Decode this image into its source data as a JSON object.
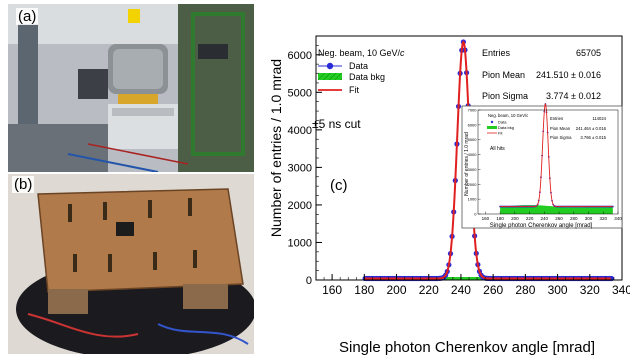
{
  "figure": {
    "panel_a_label": "(a)",
    "panel_b_label": "(b)",
    "panel_c_label": "(c)"
  },
  "stats": {
    "entries_label": "Entries",
    "entries_value": "65705",
    "mean_label": "Pion Mean",
    "mean_value": "241.510 ± 0.016",
    "sigma_label": "Pion Sigma",
    "sigma_value": "3.774 ± 0.012"
  },
  "inset_stats": {
    "title": "Neg. beam, 10 GeV/c",
    "entries_label": "Entries",
    "entries_value": "114024",
    "mean_label": "Pion Mean",
    "mean_value": "241.464 ± 0.016",
    "sigma_label": "Pion Sigma",
    "sigma_value": "3.766 ± 0.015",
    "cut_text": "All hits",
    "xlabel": "Single photon Cherenkov angle [mrad]",
    "ylabel": "Number of entries / 1.0 mrad",
    "legend": [
      "Data",
      "Data bkg",
      "Fit"
    ]
  },
  "colors": {
    "data": "#2b2bd6",
    "fit": "#e02020",
    "bkg": "#22cc22"
  },
  "chart_data": {
    "type": "scatter",
    "title": "",
    "beam_text": "Neg. beam, 10 GeV/",
    "beam_text_italic": "c",
    "cut_text": "±5 ns cut",
    "xlabel": "Single photon Cherenkov angle [mrad]",
    "ylabel": "Number of entries / 1.0 mrad",
    "xlim": [
      150,
      340
    ],
    "ylim": [
      0,
      6500
    ],
    "xticks": [
      160,
      180,
      200,
      220,
      240,
      260,
      280,
      300,
      320,
      340
    ],
    "yticks": [
      0,
      1000,
      2000,
      3000,
      4000,
      5000,
      6000
    ],
    "legend": [
      {
        "name": "Data",
        "kind": "marker"
      },
      {
        "name": "Data bkg",
        "kind": "area"
      },
      {
        "name": "Fit",
        "kind": "line"
      }
    ],
    "fit": {
      "mean": 241.51,
      "sigma": 3.774,
      "amplitude": 6300,
      "background": 40
    },
    "data_range": [
      180,
      333
    ],
    "bkg_level": 80
  },
  "inset_chart_data": {
    "xlim": [
      150,
      340
    ],
    "ylim": [
      0,
      7000
    ],
    "xticks": [
      160,
      180,
      200,
      220,
      240,
      260,
      280,
      300,
      320,
      340
    ],
    "yticks": [
      0,
      1000,
      2000,
      3000,
      4000,
      5000,
      6000,
      7000
    ],
    "fit": {
      "mean": 241.46,
      "sigma": 3.77,
      "amplitude": 6900,
      "background": 500
    },
    "data_range": [
      180,
      333
    ]
  }
}
